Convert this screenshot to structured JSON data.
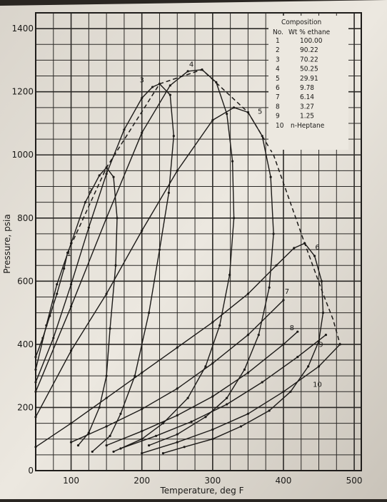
{
  "chart_data": {
    "type": "line",
    "title": "",
    "xlabel": "Temperature, deg F",
    "ylabel": "Pressure, psia",
    "xlim": [
      50,
      510
    ],
    "ylim": [
      0,
      1450
    ],
    "x_ticks": [
      "100",
      "200",
      "300",
      "400",
      "500"
    ],
    "y_ticks": [
      "0",
      "200",
      "400",
      "600",
      "800",
      "1000",
      "1200",
      "1400"
    ],
    "grid": true,
    "legend": {
      "title": "Composition",
      "header_no": "No.",
      "header_pct": "Wt % ethane",
      "rows": [
        {
          "no": "1",
          "value": "100.00"
        },
        {
          "no": "2",
          "value": "90.22"
        },
        {
          "no": "3",
          "value": "70.22"
        },
        {
          "no": "4",
          "value": "50.25"
        },
        {
          "no": "5",
          "value": "29.91"
        },
        {
          "no": "6",
          "value": "9.78"
        },
        {
          "no": "7",
          "value": "6.14"
        },
        {
          "no": "8",
          "value": "3.27"
        },
        {
          "no": "9",
          "value": "1.25"
        },
        {
          "no": "10",
          "value": "n-Heptane"
        }
      ]
    },
    "series": [
      {
        "name": "1",
        "label_at": [
          97,
          680
        ],
        "x": [
          50,
          60,
          70,
          80,
          90,
          95
        ],
        "y": [
          360,
          420,
          490,
          560,
          640,
          690
        ]
      },
      {
        "name": "2",
        "label_at": [
          127,
          880
        ],
        "bubble": {
          "x": [
            50,
            65,
            80,
            100,
            120,
            140,
            150
          ],
          "y": [
            320,
            460,
            590,
            720,
            850,
            935,
            960
          ]
        },
        "dew": {
          "x": [
            150,
            160,
            165,
            163,
            155,
            150,
            140,
            125,
            110
          ],
          "y": [
            960,
            930,
            800,
            650,
            450,
            300,
            200,
            120,
            80
          ]
        }
      },
      {
        "name": "3",
        "label_at": [
          200,
          1230
        ],
        "bubble": {
          "x": [
            50,
            75,
            100,
            125,
            150,
            175,
            200,
            215,
            225
          ],
          "y": [
            280,
            420,
            590,
            770,
            940,
            1080,
            1180,
            1215,
            1225
          ]
        },
        "dew": {
          "x": [
            225,
            240,
            245,
            238,
            225,
            210,
            190,
            170,
            155,
            130
          ],
          "y": [
            1225,
            1190,
            1060,
            880,
            700,
            500,
            300,
            180,
            110,
            60
          ]
        }
      },
      {
        "name": "4",
        "label_at": [
          270,
          1280
        ],
        "bubble": {
          "x": [
            50,
            100,
            150,
            200,
            240,
            265,
            285
          ],
          "y": [
            250,
            520,
            800,
            1070,
            1220,
            1265,
            1270
          ]
        },
        "dew": {
          "x": [
            285,
            305,
            320,
            328,
            330,
            324,
            310,
            290,
            265,
            230,
            200,
            160
          ],
          "y": [
            1270,
            1230,
            1130,
            980,
            800,
            620,
            460,
            330,
            230,
            150,
            100,
            60
          ]
        }
      },
      {
        "name": "5",
        "label_at": [
          367,
          1130
        ],
        "bubble": {
          "x": [
            50,
            100,
            150,
            200,
            250,
            300,
            330,
            350
          ],
          "y": [
            170,
            380,
            560,
            760,
            950,
            1110,
            1150,
            1135
          ]
        },
        "dew": {
          "x": [
            350,
            370,
            382,
            386,
            380,
            365,
            345,
            320,
            290,
            250,
            210
          ],
          "y": [
            1135,
            1060,
            930,
            750,
            580,
            430,
            320,
            230,
            170,
            115,
            80
          ]
        }
      },
      {
        "name": "6",
        "label_at": [
          448,
          700
        ],
        "bubble": {
          "x": [
            50,
            100,
            150,
            200,
            250,
            300,
            350,
            390,
            415,
            430
          ],
          "y": [
            75,
            150,
            230,
            310,
            390,
            470,
            560,
            650,
            705,
            720
          ]
        },
        "dew": {
          "x": [
            430,
            444,
            454,
            456,
            450,
            435,
            410,
            380,
            340,
            300,
            260,
            230
          ],
          "y": [
            720,
            680,
            600,
            500,
            410,
            330,
            250,
            190,
            140,
            100,
            75,
            55
          ]
        }
      },
      {
        "name": "7",
        "label_at": [
          405,
          560
        ],
        "x": [
          100,
          150,
          200,
          250,
          300,
          350,
          400
        ],
        "y": [
          90,
          140,
          195,
          260,
          340,
          430,
          540
        ]
      },
      {
        "name": "8",
        "label_at": [
          412,
          445
        ],
        "x": [
          150,
          200,
          250,
          300,
          350,
          400,
          420
        ],
        "y": [
          80,
          125,
          175,
          235,
          310,
          400,
          440
        ]
      },
      {
        "name": "9",
        "label_at": [
          453,
          392
        ],
        "x": [
          170,
          220,
          270,
          320,
          370,
          420,
          460
        ],
        "y": [
          70,
          110,
          155,
          210,
          280,
          360,
          430
        ]
      },
      {
        "name": "10",
        "label_at": [
          448,
          265
        ],
        "x": [
          200,
          250,
          300,
          350,
          400,
          450,
          480
        ],
        "y": [
          55,
          90,
          130,
          180,
          250,
          330,
          400
        ]
      }
    ],
    "critical_locus": {
      "x": [
        95,
        150,
        225,
        285,
        350,
        386,
        430,
        456,
        470,
        480
      ],
      "y": [
        690,
        960,
        1225,
        1270,
        1135,
        1000,
        720,
        560,
        480,
        400
      ]
    }
  }
}
